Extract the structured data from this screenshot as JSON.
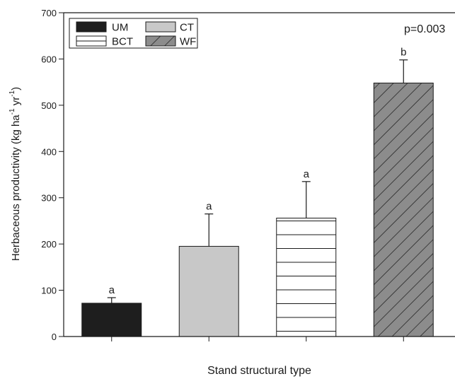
{
  "chart_data": {
    "type": "bar",
    "categories": [
      "UM",
      "CT",
      "BCT",
      "WF"
    ],
    "values": [
      72,
      195,
      256,
      548
    ],
    "error_upper": [
      84,
      265,
      335,
      598
    ],
    "significance_letters": [
      "a",
      "a",
      "a",
      "b"
    ],
    "title": "",
    "xlabel": "Stand structural type",
    "ylabel": "Herbaceous productivity (kg ha-1 yr-1)",
    "ylabel_parts": {
      "main": "Herbaceous productivity (kg ha",
      "unit1": " yr",
      "close": ")",
      "sup": "-1"
    },
    "ylim": [
      0,
      700
    ],
    "yticks": [
      "0",
      "100",
      "200",
      "300",
      "400",
      "500",
      "600",
      "700"
    ],
    "annotation": "p=0.003",
    "grid": false,
    "legend_position": "top-left",
    "legend": [
      {
        "label": "UM",
        "fill": "solid-black",
        "color": "#1e1e1e"
      },
      {
        "label": "CT",
        "fill": "solid-lightgray",
        "color": "#c8c8c8"
      },
      {
        "label": "BCT",
        "fill": "horizontal-lines",
        "color": "#ffffff"
      },
      {
        "label": "WF",
        "fill": "diagonal-hatch",
        "color": "#8c8c8c"
      }
    ]
  }
}
